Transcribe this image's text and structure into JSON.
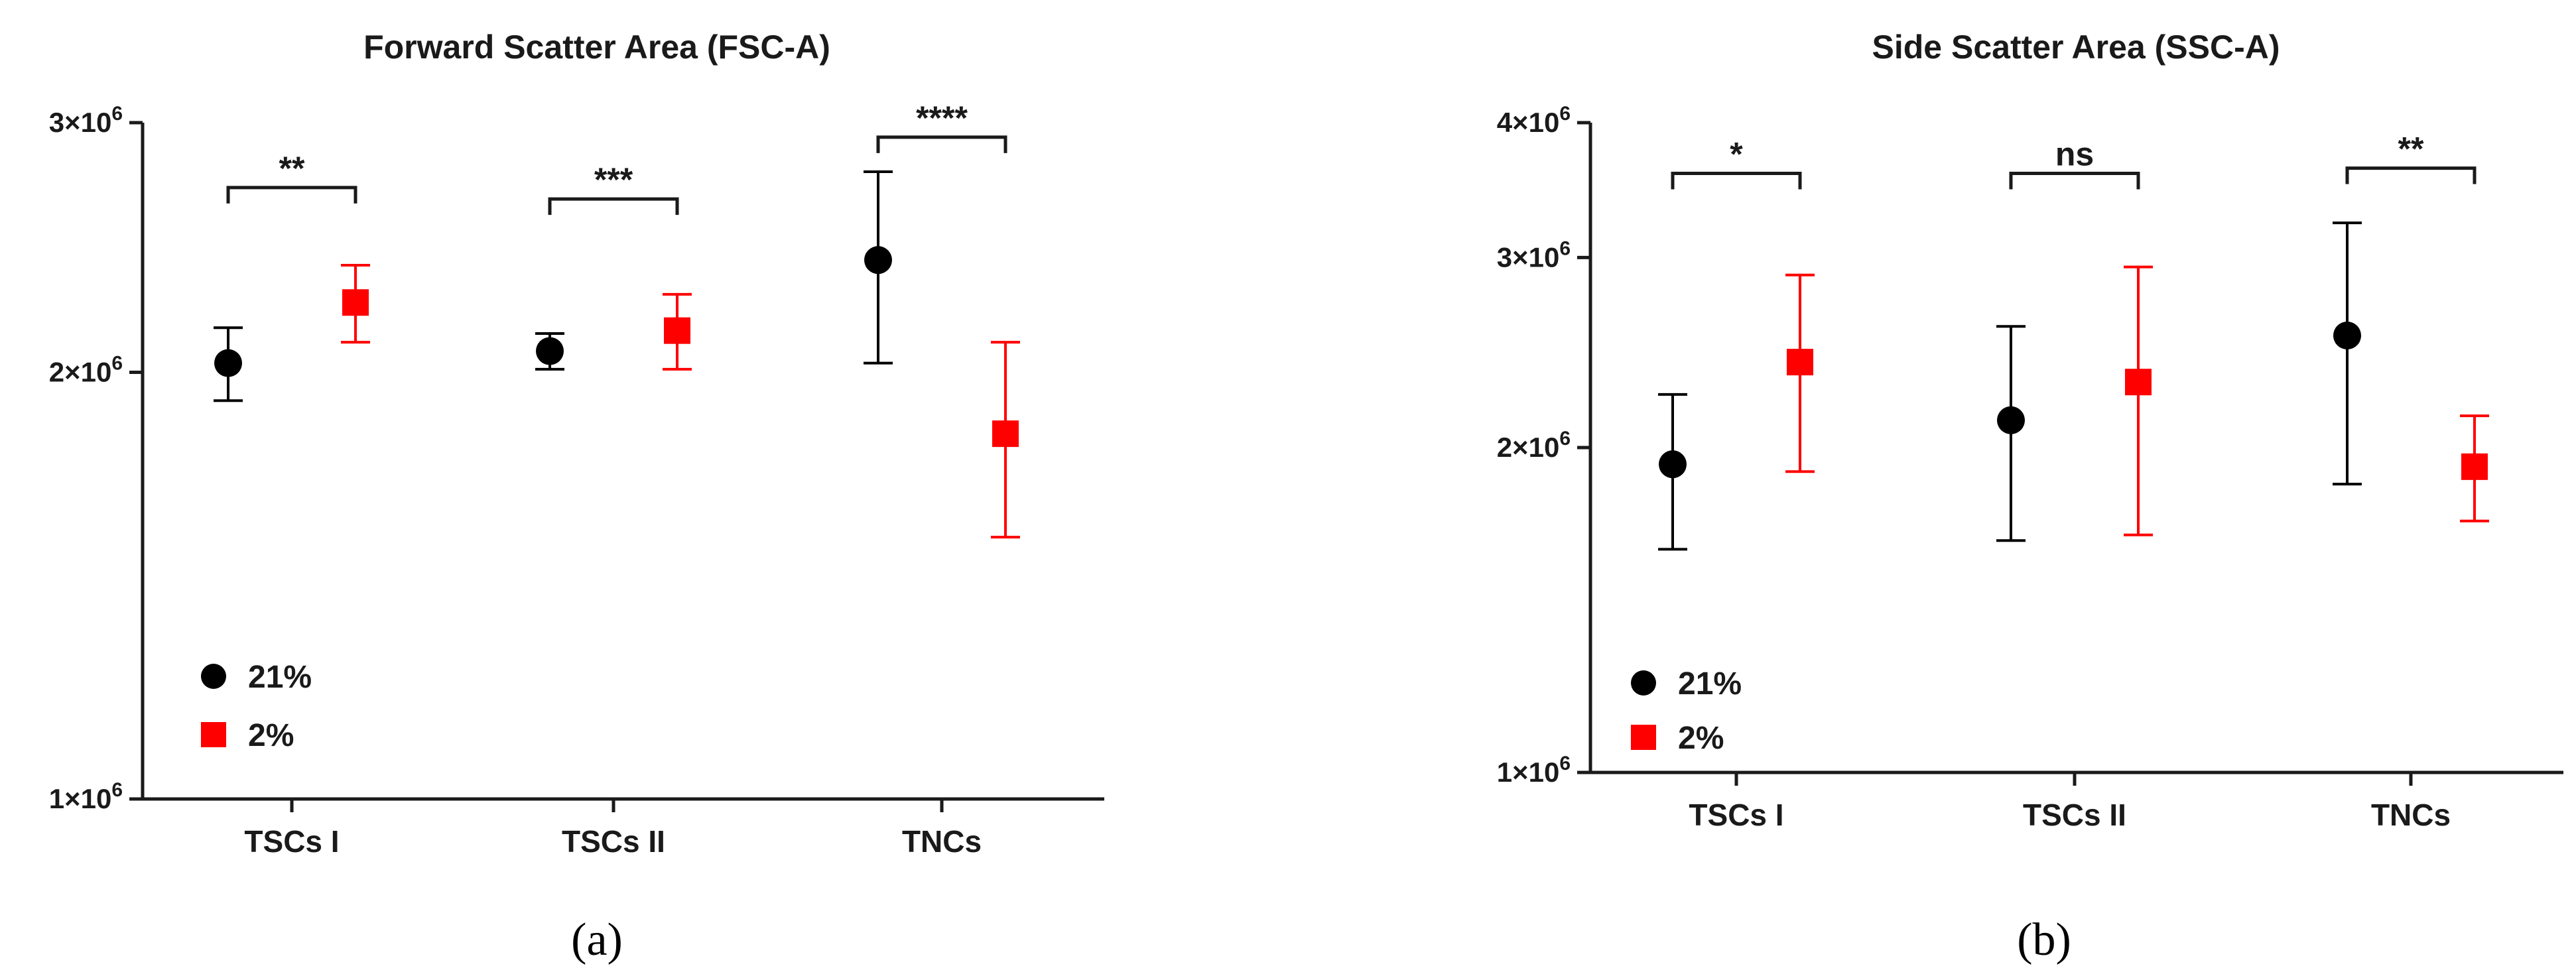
{
  "figure": {
    "panel_labels": [
      "(a)",
      "(b)"
    ]
  },
  "colors": {
    "series_21": "#000000",
    "series_2": "#ff0000",
    "axis": "#1a1a1a"
  },
  "chart_data": [
    {
      "type": "scatter",
      "title": "Forward Scatter Area (FSC-A)",
      "xlabel": "",
      "ylabel": "",
      "categories": [
        "TSCs I",
        "TSCs II",
        "TNCs"
      ],
      "y_scale": "log",
      "ylim": [
        1000000,
        3000000
      ],
      "y_ticks": [
        {
          "value": 1000000,
          "label": "1×10",
          "exp": "6"
        },
        {
          "value": 2000000,
          "label": "2×10",
          "exp": "6"
        },
        {
          "value": 3000000,
          "label": "3×10",
          "exp": "6"
        }
      ],
      "grid": false,
      "legend": {
        "position": "bottom-left",
        "entries": [
          "21%",
          "2%"
        ]
      },
      "series": [
        {
          "name": "21%",
          "marker": "circle",
          "color": "#000000",
          "mean": [
            2030000,
            2070000,
            2400000
          ],
          "err_low": [
            1910000,
            2010000,
            2030000
          ],
          "err_high": [
            2150000,
            2130000,
            2770000
          ]
        },
        {
          "name": "2%",
          "marker": "square",
          "color": "#ff0000",
          "mean": [
            2240000,
            2140000,
            1810000
          ],
          "err_low": [
            2100000,
            2010000,
            1530000
          ],
          "err_high": [
            2380000,
            2270000,
            2100000
          ]
        }
      ],
      "significance": [
        {
          "category_index": 0,
          "label": "**",
          "y": 2700000
        },
        {
          "category_index": 1,
          "label": "***",
          "y": 2650000
        },
        {
          "category_index": 2,
          "label": "****",
          "y": 2930000
        }
      ]
    },
    {
      "type": "scatter",
      "title": "Side Scatter Area (SSC-A)",
      "xlabel": "",
      "ylabel": "",
      "categories": [
        "TSCs I",
        "TSCs II",
        "TNCs"
      ],
      "y_scale": "log",
      "ylim": [
        1000000,
        4000000
      ],
      "y_ticks": [
        {
          "value": 1000000,
          "label": "1×10",
          "exp": "6"
        },
        {
          "value": 2000000,
          "label": "2×10",
          "exp": "6"
        },
        {
          "value": 3000000,
          "label": "3×10",
          "exp": "6"
        },
        {
          "value": 4000000,
          "label": "4×10",
          "exp": "6"
        }
      ],
      "grid": false,
      "legend": {
        "position": "bottom-left",
        "entries": [
          "21%",
          "2%"
        ]
      },
      "series": [
        {
          "name": "21%",
          "marker": "circle",
          "color": "#000000",
          "mean": [
            1930000,
            2120000,
            2540000
          ],
          "err_low": [
            1610000,
            1640000,
            1850000
          ],
          "err_high": [
            2240000,
            2590000,
            3230000
          ]
        },
        {
          "name": "2%",
          "marker": "square",
          "color": "#ff0000",
          "mean": [
            2400000,
            2300000,
            1920000
          ],
          "err_low": [
            1900000,
            1660000,
            1710000
          ],
          "err_high": [
            2890000,
            2940000,
            2140000
          ]
        }
      ],
      "significance": [
        {
          "category_index": 0,
          "label": "*",
          "y": 3590000
        },
        {
          "category_index": 1,
          "label": "ns",
          "y": 3590000
        },
        {
          "category_index": 2,
          "label": "**",
          "y": 3630000
        }
      ]
    }
  ]
}
